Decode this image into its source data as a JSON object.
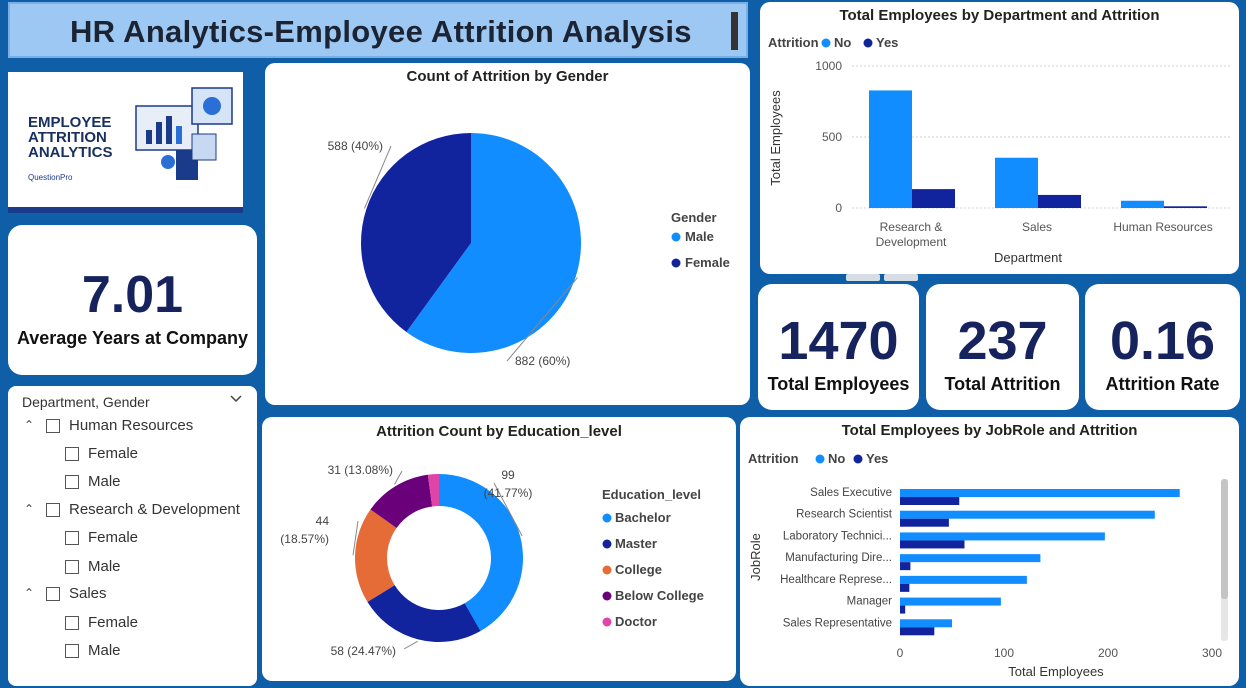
{
  "header": {
    "title": "HR Analytics-Employee Attrition Analysis"
  },
  "logo": {
    "lines": [
      "EMPLOYEE",
      "ATTRITION",
      "ANALYTICS"
    ],
    "brand": "QuestionPro"
  },
  "kpis": {
    "avg_years": {
      "value": "7.01",
      "label": "Average Years at Company"
    },
    "total_employees": {
      "value": "1470",
      "label": "Total Employees"
    },
    "total_attrition": {
      "value": "237",
      "label": "Total Attrition"
    },
    "attrition_rate": {
      "value": "0.16",
      "label": "Attrition Rate"
    }
  },
  "slicer": {
    "title": "Department, Gender",
    "groups": [
      {
        "label": "Human Resources",
        "children": [
          "Female",
          "Male"
        ]
      },
      {
        "label": "Research & Development",
        "children": [
          "Female",
          "Male"
        ]
      },
      {
        "label": "Sales",
        "children": [
          "Female",
          "Male"
        ]
      }
    ]
  },
  "colors": {
    "no": "#118dff",
    "yes": "#12239e",
    "bachelor": "#118dff",
    "master": "#12239e",
    "college": "#e66c37",
    "below_college": "#6b007b",
    "doctor": "#e044a7"
  },
  "chart_data": [
    {
      "id": "gender",
      "type": "pie",
      "title": "Count of Attrition by Gender",
      "legend_title": "Gender",
      "legend_position": "right",
      "slices": [
        {
          "name": "Male",
          "value": 882,
          "label": "882 (60%)",
          "color": "#118dff"
        },
        {
          "name": "Female",
          "value": 588,
          "label": "588 (40%)",
          "color": "#12239e"
        }
      ]
    },
    {
      "id": "department",
      "type": "bar",
      "title": "Total Employees by Department and Attrition",
      "legend_title": "Attrition",
      "legend_position": "top-left",
      "xlabel": "Department",
      "ylabel": "Total Employees",
      "categories": [
        "Research & Development",
        "Sales",
        "Human Resources"
      ],
      "category_lines": [
        [
          "Research &",
          "Development"
        ],
        [
          "Sales"
        ],
        [
          "Human Resources"
        ]
      ],
      "yticks": [
        "0",
        "500",
        "1000"
      ],
      "ylim": [
        0,
        1000
      ],
      "grid": true,
      "series": [
        {
          "name": "No",
          "values": [
            828,
            354,
            51
          ],
          "color": "#118dff"
        },
        {
          "name": "Yes",
          "values": [
            133,
            92,
            12
          ],
          "color": "#12239e"
        }
      ]
    },
    {
      "id": "education",
      "type": "pie",
      "title": "Attrition Count by Education_level",
      "legend_title": "Education_level",
      "legend_position": "right",
      "slices": [
        {
          "name": "Bachelor",
          "value": 99,
          "label_lines": [
            "99",
            "(41.77%)"
          ],
          "color": "#118dff"
        },
        {
          "name": "Master",
          "value": 58,
          "label_lines": [
            "58 (24.47%)"
          ],
          "color": "#12239e"
        },
        {
          "name": "College",
          "value": 44,
          "label_lines": [
            "44",
            "(18.57%)"
          ],
          "color": "#e66c37"
        },
        {
          "name": "Below College",
          "value": 31,
          "label_lines": [
            "31 (13.08%)"
          ],
          "color": "#6b007b"
        },
        {
          "name": "Doctor",
          "value": 5,
          "label_lines": [],
          "color": "#e044a7"
        }
      ]
    },
    {
      "id": "jobrole",
      "type": "bar",
      "orientation": "horizontal",
      "title": "Total Employees by JobRole and Attrition",
      "legend_title": "Attrition",
      "legend_position": "top-left",
      "xlabel": "Total Employees",
      "ylabel": "JobRole",
      "categories": [
        "Sales Executive",
        "Research Scientist",
        "Laboratory Technici...",
        "Manufacturing Dire...",
        "Healthcare Represe...",
        "Manager",
        "Sales Representative"
      ],
      "xticks": [
        "0",
        "100",
        "200",
        "300"
      ],
      "xlim": [
        0,
        300
      ],
      "series": [
        {
          "name": "No",
          "values": [
            269,
            245,
            197,
            135,
            122,
            97,
            50
          ],
          "color": "#118dff"
        },
        {
          "name": "Yes",
          "values": [
            57,
            47,
            62,
            10,
            9,
            5,
            33
          ],
          "color": "#12239e"
        }
      ]
    }
  ]
}
